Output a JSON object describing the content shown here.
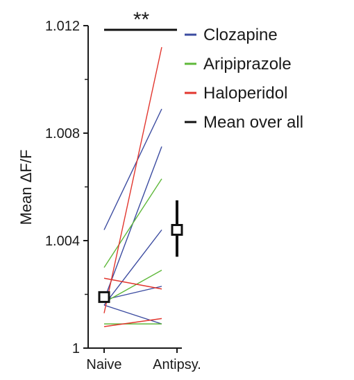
{
  "chart_data": {
    "type": "line",
    "title": "",
    "xlabel": "",
    "ylabel": "Mean ΔF/F",
    "ylim": [
      1.0,
      1.012
    ],
    "y_ticks": [
      {
        "value": 1.0,
        "label": "1"
      },
      {
        "value": 1.004,
        "label": "1.004"
      },
      {
        "value": 1.008,
        "label": "1.008"
      },
      {
        "value": 1.012,
        "label": "1.012"
      }
    ],
    "categories": [
      "Naive",
      "Antipsy."
    ],
    "significance": {
      "label": "**",
      "from": "Naive",
      "to": "Antipsy."
    },
    "legend": {
      "position": "top-right",
      "entries": [
        {
          "name": "Clozapine",
          "color": "#3b4ba0"
        },
        {
          "name": "Aripiprazole",
          "color": "#5fb83a"
        },
        {
          "name": "Haloperidol",
          "color": "#e2362e"
        },
        {
          "name": "Mean over all",
          "color": "#111111"
        }
      ]
    },
    "series": [
      {
        "drug": "Clozapine",
        "color": "#3b4ba0",
        "values": [
          1.0044,
          1.0089
        ]
      },
      {
        "drug": "Clozapine",
        "color": "#3b4ba0",
        "values": [
          1.0018,
          1.0075
        ]
      },
      {
        "drug": "Clozapine",
        "color": "#3b4ba0",
        "values": [
          1.0016,
          1.0044
        ]
      },
      {
        "drug": "Clozapine",
        "color": "#3b4ba0",
        "values": [
          1.0018,
          1.0023
        ]
      },
      {
        "drug": "Clozapine",
        "color": "#3b4ba0",
        "values": [
          1.0016,
          1.0009
        ]
      },
      {
        "drug": "Aripiprazole",
        "color": "#5fb83a",
        "values": [
          1.003,
          1.0063
        ]
      },
      {
        "drug": "Aripiprazole",
        "color": "#5fb83a",
        "values": [
          1.0017,
          1.0029
        ]
      },
      {
        "drug": "Aripiprazole",
        "color": "#5fb83a",
        "values": [
          1.0009,
          1.0009
        ]
      },
      {
        "drug": "Haloperidol",
        "color": "#e2362e",
        "values": [
          1.0013,
          1.0112
        ]
      },
      {
        "drug": "Haloperidol",
        "color": "#e2362e",
        "values": [
          1.0026,
          1.0022
        ]
      },
      {
        "drug": "Haloperidol",
        "color": "#e2362e",
        "values": [
          1.0008,
          1.0011
        ]
      }
    ],
    "mean_over_all": [
      {
        "category": "Naive",
        "mean": 1.0019,
        "err_low": 1.0017,
        "err_high": 1.0021
      },
      {
        "category": "Antipsy.",
        "mean": 1.0044,
        "err_low": 1.0034,
        "err_high": 1.0055
      }
    ],
    "grid": false
  }
}
